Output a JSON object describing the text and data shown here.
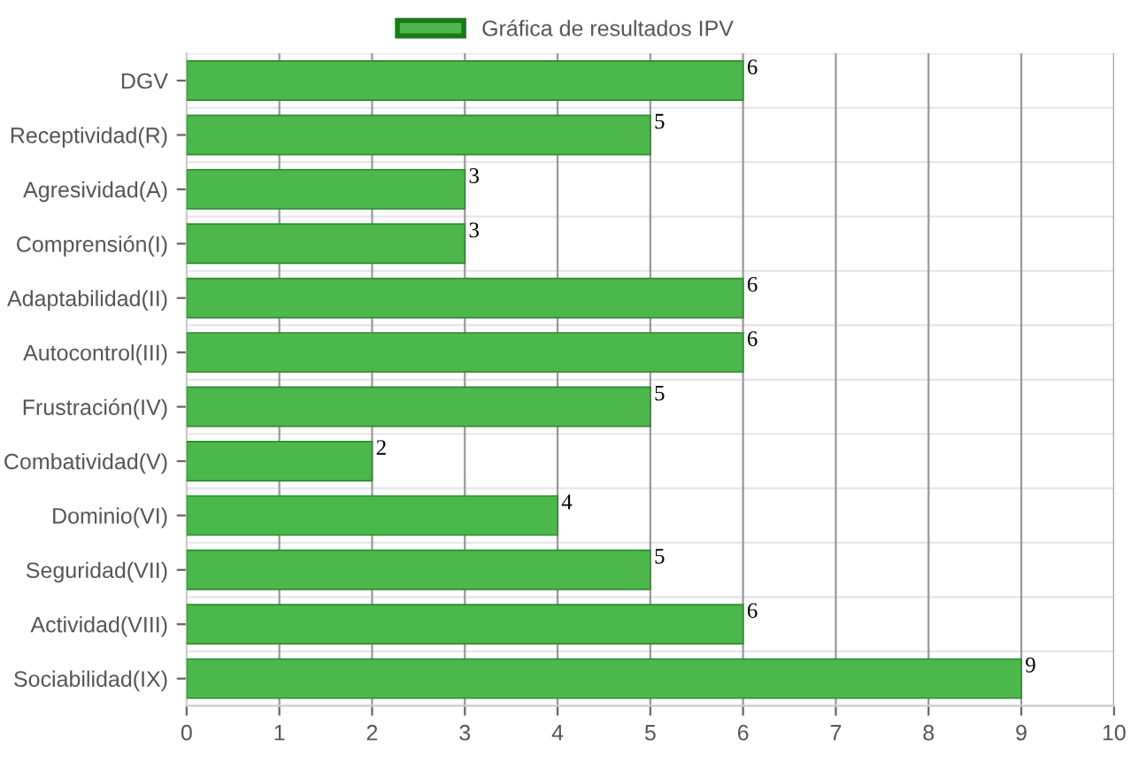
{
  "chart_data": {
    "type": "bar",
    "orientation": "horizontal",
    "categories": [
      "DGV",
      "Receptividad(R)",
      "Agresividad(A)",
      "Comprensión(I)",
      "Adaptabilidad(II)",
      "Autocontrol(III)",
      "Frustración(IV)",
      "Combatividad(V)",
      "Dominio(VI)",
      "Seguridad(VII)",
      "Actividad(VIII)",
      "Sociabilidad(IX)"
    ],
    "series": [
      {
        "name": "Gráfica de resultados IPV",
        "color": "#4cb84c",
        "values": [
          6,
          5,
          3,
          3,
          6,
          6,
          5,
          2,
          4,
          5,
          6,
          9
        ]
      }
    ],
    "xlim": [
      0,
      10
    ],
    "xticks": [
      0,
      1,
      2,
      3,
      4,
      5,
      6,
      7,
      8,
      9,
      10
    ],
    "grid": true,
    "legend": "top",
    "data_labels": true
  }
}
